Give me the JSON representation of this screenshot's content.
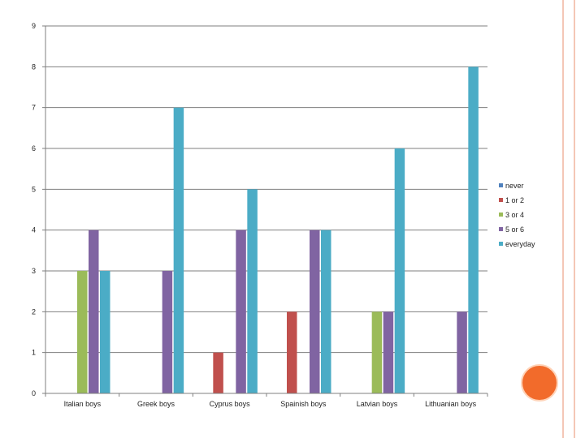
{
  "chart_data": {
    "type": "bar",
    "title": "",
    "xlabel": "",
    "ylabel": "",
    "ylim": [
      0,
      9
    ],
    "yticks": [
      0,
      1,
      2,
      3,
      4,
      5,
      6,
      7,
      8,
      9
    ],
    "grid": true,
    "legend_position": "right",
    "categories": [
      "Italian boys",
      "Greek boys",
      "Cyprus boys",
      "Spainish boys",
      "Latvian boys",
      "Lithuanian boys"
    ],
    "series": [
      {
        "name": "never",
        "color": "#4f81bd",
        "values": [
          0,
          0,
          0,
          0,
          0,
          0
        ]
      },
      {
        "name": "1 or 2",
        "color": "#c0504d",
        "values": [
          0,
          0,
          1,
          2,
          0,
          0
        ]
      },
      {
        "name": "3 or 4",
        "color": "#9bbb59",
        "values": [
          3,
          0,
          0,
          0,
          2,
          0
        ]
      },
      {
        "name": "5 or 6",
        "color": "#8064a2",
        "values": [
          4,
          3,
          4,
          4,
          2,
          2
        ]
      },
      {
        "name": "everyday",
        "color": "#4bacc6",
        "values": [
          3,
          7,
          5,
          4,
          6,
          8
        ]
      }
    ]
  },
  "decor": {
    "accent_line": "#f4c7b6",
    "circle": "#f26b2b"
  }
}
